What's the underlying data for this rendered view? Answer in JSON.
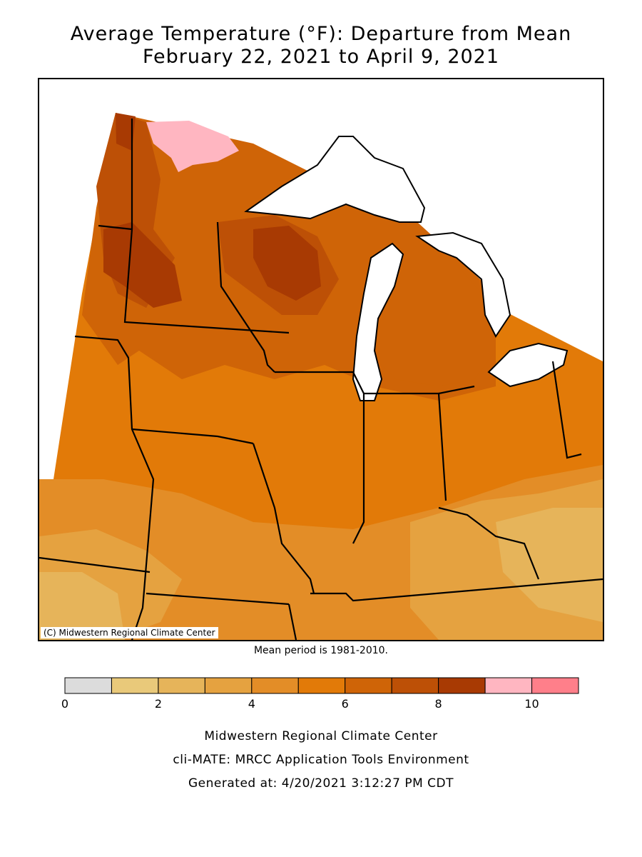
{
  "title_line1": "Average Temperature (°F): Departure from Mean",
  "title_line2": "February 22, 2021 to April 9, 2021",
  "copyright": "(C) Midwestern Regional Climate Center",
  "mean_period": "Mean period is 1981-2010.",
  "legend": {
    "bins": [
      {
        "range": [
          0,
          1
        ],
        "color": "#dcdcdc"
      },
      {
        "range": [
          1,
          2
        ],
        "color": "#e9c97a"
      },
      {
        "range": [
          2,
          3
        ],
        "color": "#e6b45a"
      },
      {
        "range": [
          3,
          4
        ],
        "color": "#e5a240"
      },
      {
        "range": [
          4,
          5
        ],
        "color": "#e38d27"
      },
      {
        "range": [
          5,
          6
        ],
        "color": "#e27a08"
      },
      {
        "range": [
          6,
          7
        ],
        "color": "#cf6407"
      },
      {
        "range": [
          7,
          8
        ],
        "color": "#bd5006"
      },
      {
        "range": [
          8,
          9
        ],
        "color": "#a83a03"
      },
      {
        "range": [
          9,
          10
        ],
        "color": "#ffb6c1"
      },
      {
        "range": [
          10,
          11
        ],
        "color": "#ff7f8a"
      }
    ],
    "tick_labels": [
      "0",
      "2",
      "4",
      "6",
      "8",
      "10"
    ]
  },
  "footer": {
    "line1": "Midwestern Regional Climate Center",
    "line2": "cli-MATE: MRCC Application Tools Environment",
    "line3": "Generated at: 4/20/2021 3:12:27 PM CDT"
  }
}
